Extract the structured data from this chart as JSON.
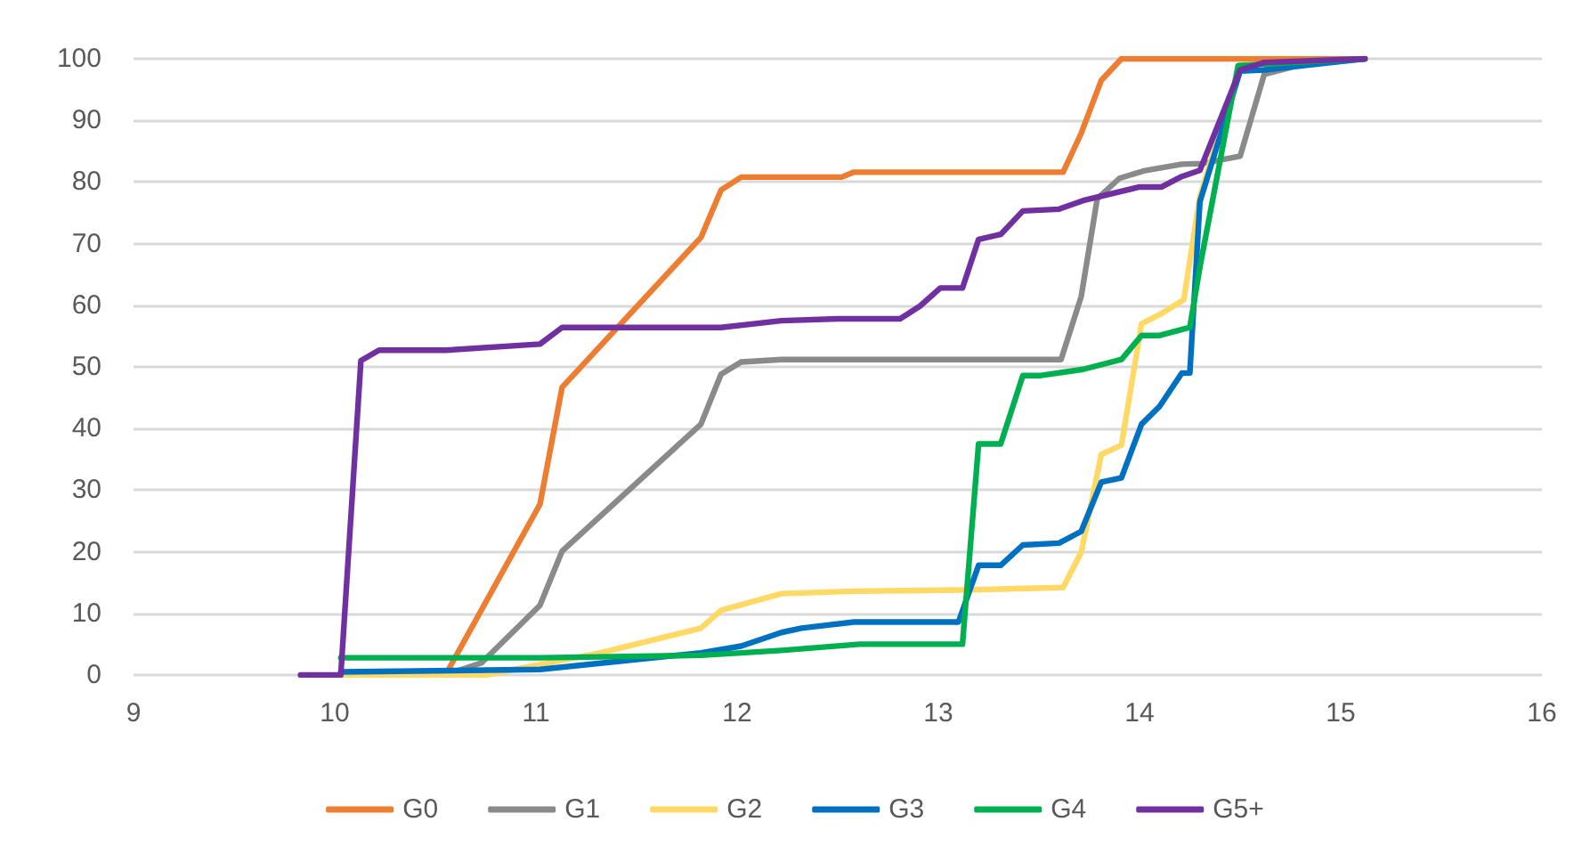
{
  "chart_data": {
    "type": "line",
    "xlim": [
      9,
      16
    ],
    "xticks": [
      9,
      10,
      11,
      12,
      13,
      14,
      15,
      16
    ],
    "ylim": [
      0,
      100
    ],
    "yticks": [
      0,
      10,
      20,
      30,
      40,
      50,
      60,
      70,
      80,
      90,
      100
    ],
    "grid": "y",
    "legend": "bottom",
    "marker": "none",
    "line_style": "solid",
    "series": [
      {
        "name": "G0",
        "color": "#ed7d31",
        "x": [
          10.55,
          11.02,
          11.13,
          11.82,
          11.92,
          12.02,
          12.52,
          12.58,
          13.62,
          13.71,
          13.81,
          13.91,
          15.12
        ],
        "values": [
          0,
          27.7,
          46.7,
          71,
          78.7,
          80.8,
          80.8,
          81.6,
          81.6,
          87.9,
          96.5,
          100,
          100
        ]
      },
      {
        "name": "G1",
        "color": "#8a8a8a",
        "x": [
          10.55,
          10.73,
          11.02,
          11.13,
          11.82,
          11.92,
          12.02,
          12.22,
          13.61,
          13.71,
          13.79,
          13.9,
          14.02,
          14.21,
          14.31,
          14.5,
          14.62,
          14.8,
          15.12
        ],
        "values": [
          0,
          2,
          11.3,
          20.1,
          40.7,
          48.8,
          50.8,
          51.2,
          51.2,
          61.4,
          77.3,
          80.6,
          81.8,
          82.9,
          83,
          84.2,
          97.5,
          99,
          100
        ]
      },
      {
        "name": "G2",
        "color": "#ffd966",
        "x": [
          10.03,
          10.75,
          11.32,
          11.82,
          11.92,
          12.22,
          12.58,
          13.12,
          13.62,
          13.71,
          13.81,
          13.91,
          14.01,
          14.1,
          14.22,
          14.3,
          14.5,
          15.12
        ],
        "values": [
          0,
          0,
          3.6,
          7.6,
          10.5,
          13.2,
          13.6,
          13.8,
          14.2,
          19.9,
          35.8,
          37.3,
          57,
          58.5,
          60.9,
          77.7,
          99,
          100
        ]
      },
      {
        "name": "G3",
        "color": "#0070c0",
        "x": [
          10.03,
          11.02,
          11.82,
          12.02,
          12.22,
          12.32,
          12.58,
          13.1,
          13.2,
          13.31,
          13.42,
          13.6,
          13.71,
          13.81,
          13.91,
          14.01,
          14.1,
          14.21,
          14.25,
          14.3,
          14.5,
          14.62,
          15.12
        ],
        "values": [
          0.5,
          0.9,
          3.6,
          4.7,
          6.9,
          7.6,
          8.6,
          8.6,
          17.8,
          17.8,
          21.1,
          21.4,
          23.3,
          31.3,
          32,
          40.7,
          43.6,
          49,
          49,
          76.8,
          98,
          98.2,
          100
        ]
      },
      {
        "name": "G4",
        "color": "#00b050",
        "x": [
          10.03,
          11.02,
          11.82,
          12.02,
          12.22,
          12.61,
          13.12,
          13.2,
          13.31,
          13.42,
          13.51,
          13.72,
          13.91,
          14.01,
          14.1,
          14.25,
          14.3,
          14.49,
          15.12
        ],
        "values": [
          2.8,
          2.8,
          3.2,
          3.6,
          4,
          5,
          5,
          37.5,
          37.5,
          48.6,
          48.6,
          49.6,
          51.2,
          55.1,
          55.1,
          56.4,
          66.2,
          98.9,
          100
        ]
      },
      {
        "name": "G5+",
        "color": "#7030a0",
        "x": [
          9.83,
          10.03,
          10.13,
          10.22,
          10.55,
          11.02,
          11.13,
          11.92,
          12.22,
          12.5,
          12.81,
          12.91,
          13.01,
          13.12,
          13.2,
          13.31,
          13.42,
          13.6,
          13.72,
          14,
          14.11,
          14.21,
          14.3,
          14.5,
          14.62,
          15.12
        ],
        "values": [
          0,
          0,
          51,
          52.7,
          52.7,
          53.7,
          56.4,
          56.4,
          57.5,
          57.8,
          57.8,
          59.9,
          62.8,
          62.8,
          70.7,
          71.5,
          75.3,
          75.6,
          77,
          79.2,
          79.2,
          80.9,
          81.9,
          98.2,
          99.4,
          100
        ]
      }
    ]
  }
}
